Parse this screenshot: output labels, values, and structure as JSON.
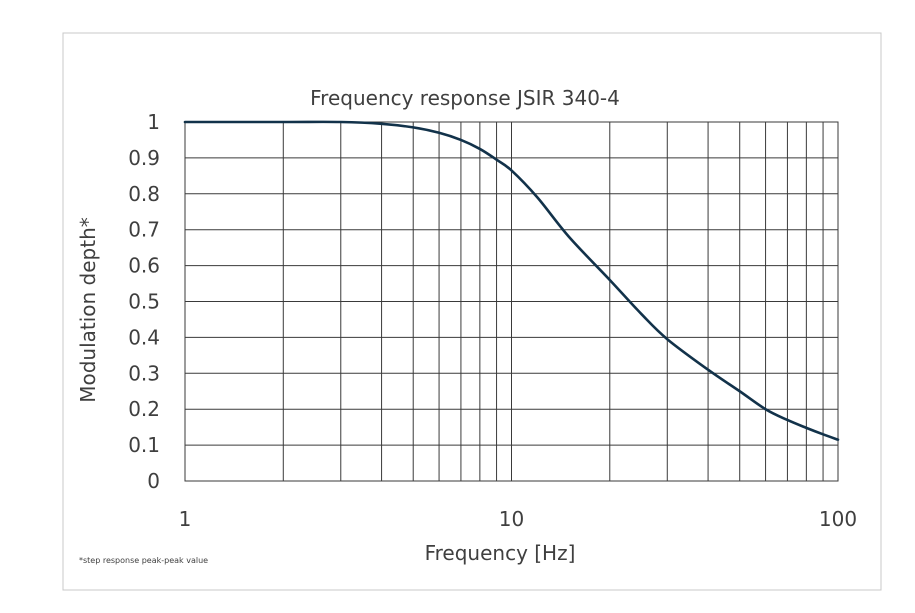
{
  "chart_data": {
    "type": "line",
    "title": "Frequency response JSIR 340-4",
    "xlabel": "Frequency [Hz]",
    "ylabel": "Modulation depth*",
    "footnote": "*step response peak-peak value",
    "x_scale": "log",
    "xlim": [
      1,
      100
    ],
    "ylim": [
      0,
      1
    ],
    "x_ticks": [
      1,
      10,
      100
    ],
    "x_tick_labels": [
      "1",
      "10",
      "100"
    ],
    "y_ticks": [
      0,
      0.1,
      0.2,
      0.3,
      0.4,
      0.5,
      0.6,
      0.7,
      0.8,
      0.9,
      1
    ],
    "y_tick_labels": [
      "0",
      "0.1",
      "0.2",
      "0.3",
      "0.4",
      "0.5",
      "0.6",
      "0.7",
      "0.8",
      "0.9",
      "1"
    ],
    "grid": true,
    "colors": {
      "line": "#12324a",
      "grid": "#3a3a3a",
      "text": "#3f3f3f",
      "frame": "#c8c8c8"
    },
    "series": [
      {
        "name": "JSIR 340-4",
        "x": [
          1,
          2,
          3,
          4,
          5,
          6,
          7,
          8,
          9,
          10,
          12,
          15,
          20,
          25,
          30,
          40,
          50,
          60,
          70,
          80,
          90,
          100
        ],
        "y": [
          1.0,
          1.0,
          1.0,
          0.995,
          0.985,
          0.97,
          0.95,
          0.925,
          0.895,
          0.865,
          0.79,
          0.68,
          0.56,
          0.465,
          0.395,
          0.31,
          0.25,
          0.2,
          0.17,
          0.148,
          0.13,
          0.115
        ]
      }
    ]
  }
}
